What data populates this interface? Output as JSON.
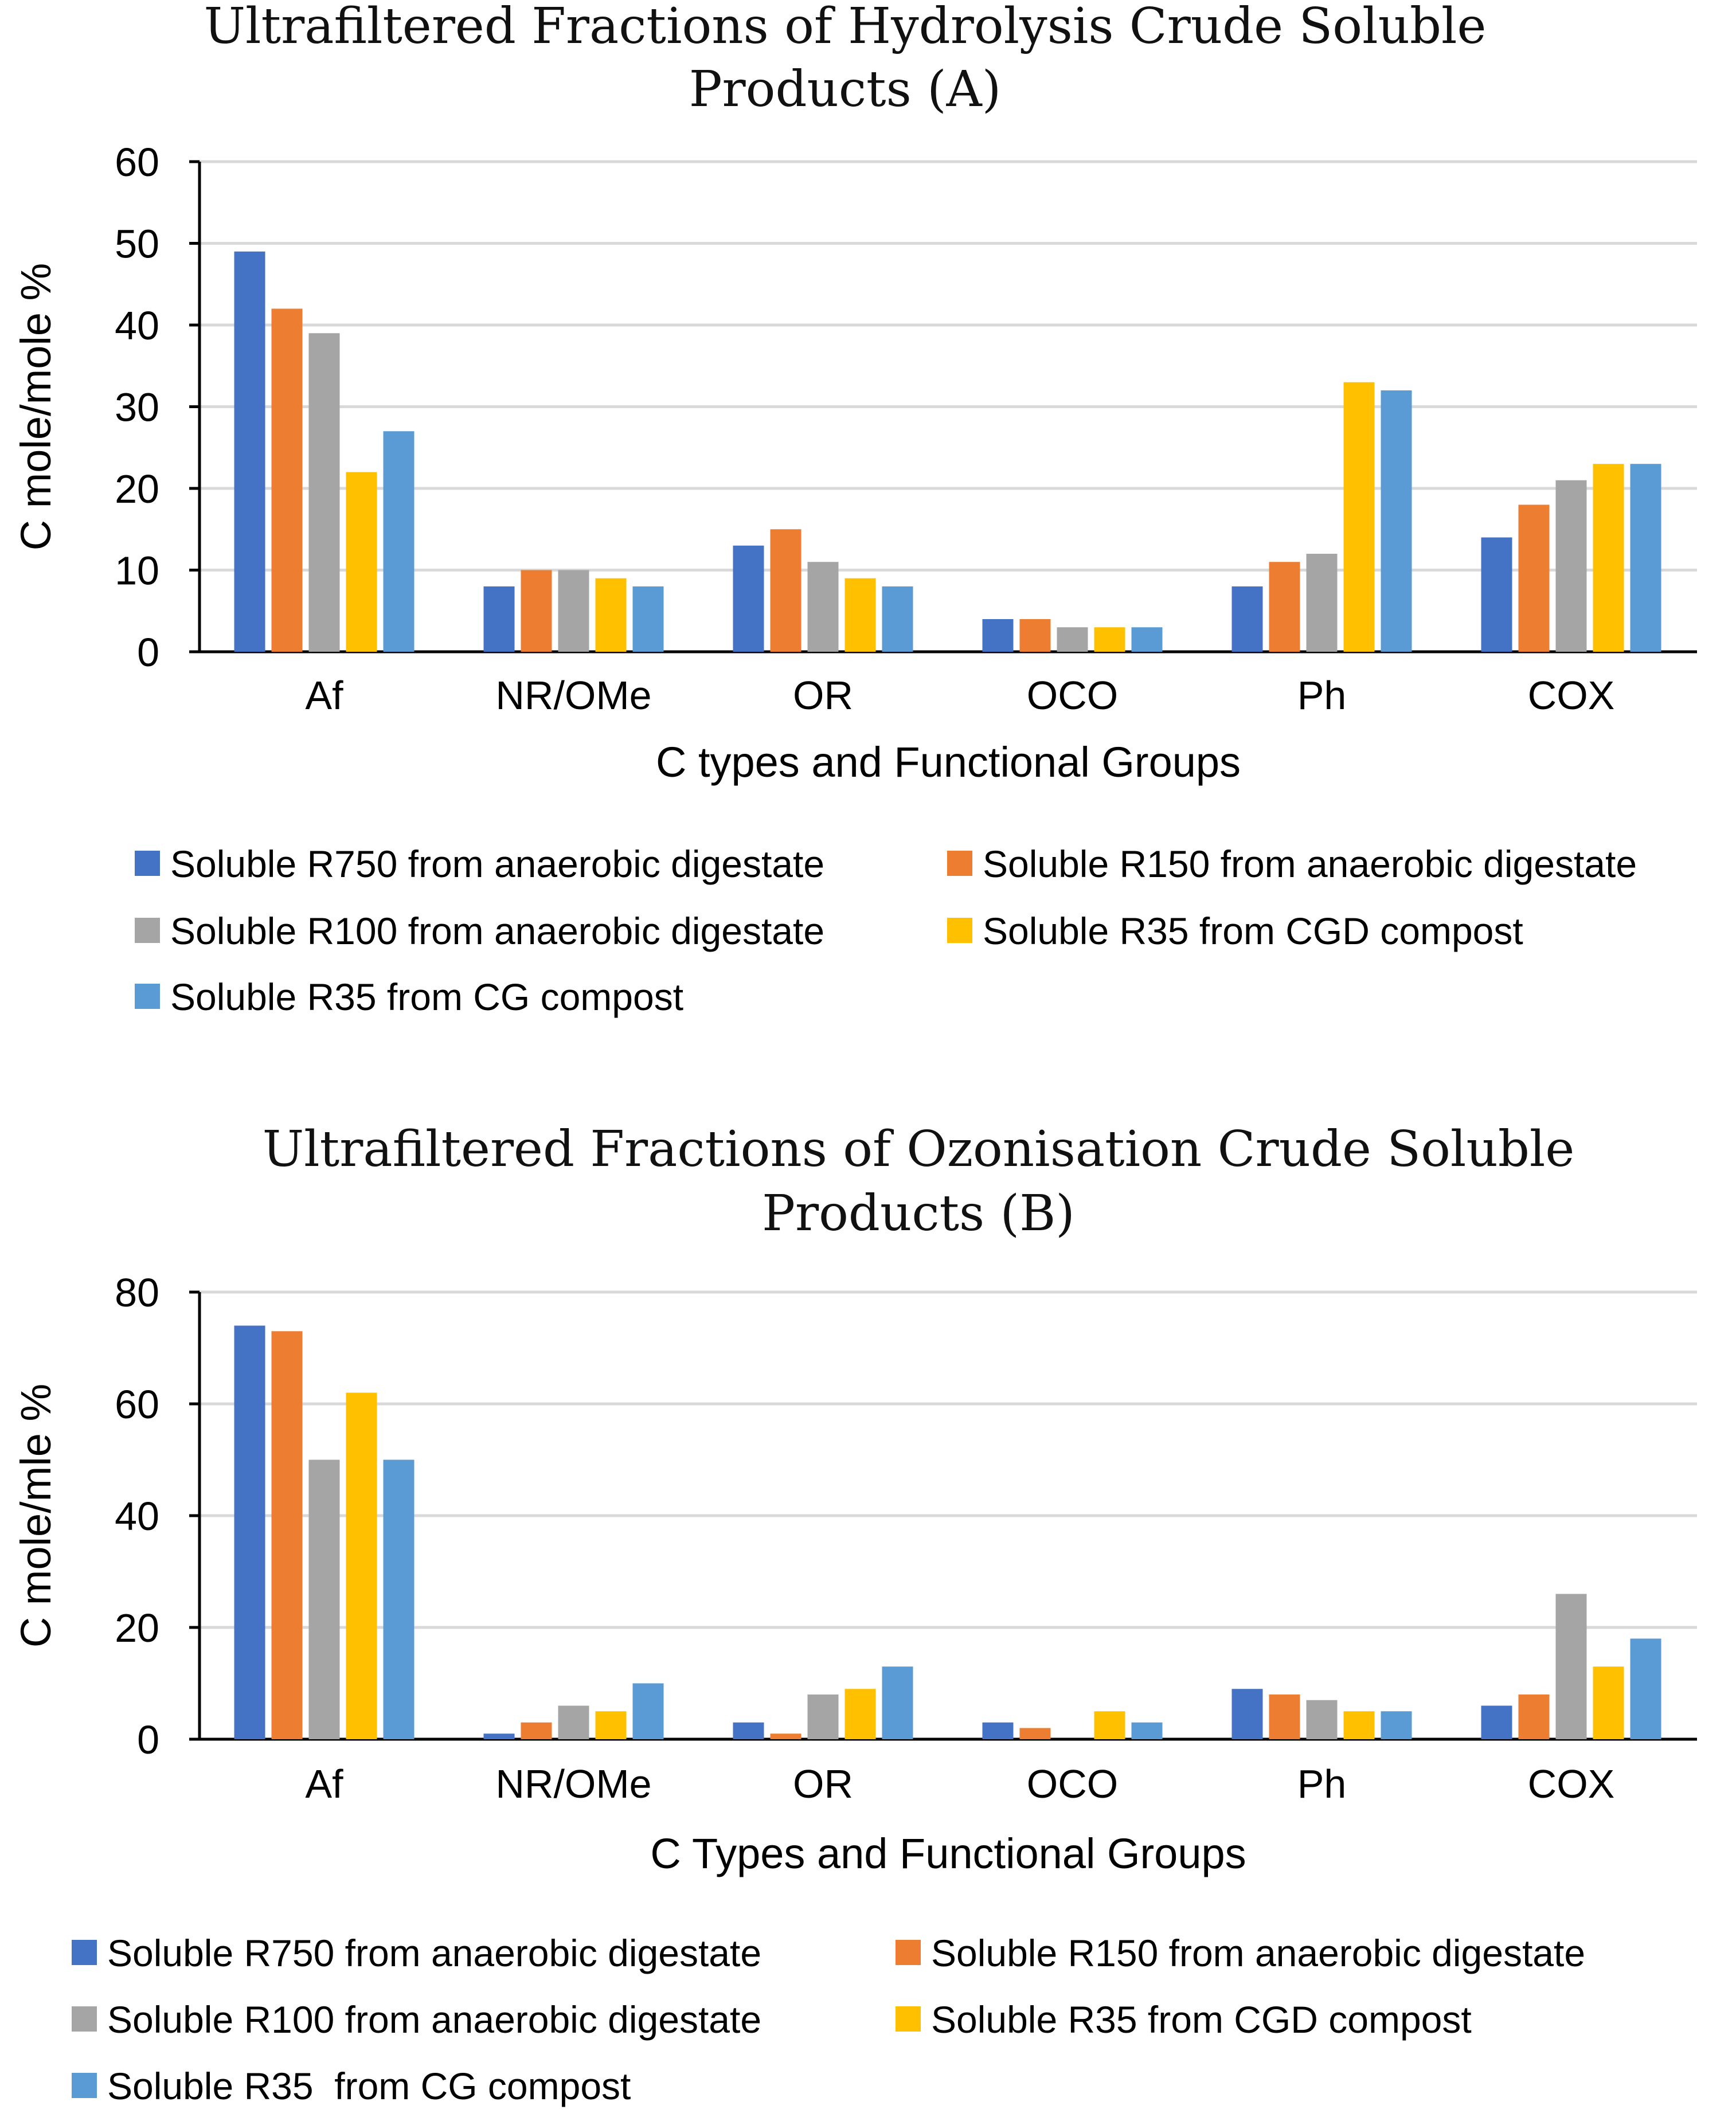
{
  "chart_data": [
    {
      "type": "bar",
      "title": "Ultrafiltered Fractions of Hydrolysis Crude Soluble",
      "title_line2": "Products (A)",
      "xlabel": "C types and Functional Groups",
      "ylabel": "C mole/mole %",
      "ylim": [
        0,
        60
      ],
      "yticks": [
        "0",
        "10",
        "20",
        "30",
        "40",
        "50",
        "60"
      ],
      "grid": true,
      "legend_position": "bottom",
      "categories": [
        "Af",
        "NR/OMe",
        "OR",
        "OCO",
        "Ph",
        "COX"
      ],
      "series": [
        {
          "name": "Soluble R750 from anaerobic digestate",
          "color": "#4472C4",
          "values": [
            49,
            8,
            13,
            4,
            8,
            14
          ]
        },
        {
          "name": "Soluble R150 from anaerobic digestate",
          "color": "#ED7D31",
          "values": [
            42,
            10,
            15,
            4,
            11,
            18
          ]
        },
        {
          "name": "Soluble R100 from anaerobic digestate",
          "color": "#A5A5A5",
          "values": [
            39,
            10,
            11,
            3,
            12,
            21
          ]
        },
        {
          "name": "Soluble R35 from CGD compost",
          "color": "#FFC000",
          "values": [
            22,
            9,
            9,
            3,
            33,
            23
          ]
        },
        {
          "name": "Soluble R35 from CG compost",
          "color": "#5B9BD5",
          "values": [
            27,
            8,
            8,
            3,
            32,
            23
          ]
        }
      ]
    },
    {
      "type": "bar",
      "title": "Ultrafiltered Fractions of Ozonisation Crude Soluble",
      "title_line2": "Products (B)",
      "xlabel": "C Types and Functional Groups",
      "ylabel": "C mole/mle %",
      "ylim": [
        0,
        80
      ],
      "yticks": [
        "0",
        "20",
        "40",
        "60",
        "80"
      ],
      "grid": true,
      "legend_position": "bottom",
      "categories": [
        "Af",
        "NR/OMe",
        "OR",
        "OCO",
        "Ph",
        "COX"
      ],
      "series": [
        {
          "name": "Soluble R750 from anaerobic digestate",
          "color": "#4472C4",
          "values": [
            74,
            1,
            3,
            3,
            9,
            6
          ]
        },
        {
          "name": "Soluble R150 from anaerobic digestate",
          "color": "#ED7D31",
          "values": [
            73,
            3,
            1,
            2,
            8,
            8
          ]
        },
        {
          "name": "Soluble R100 from anaerobic digestate",
          "color": "#A5A5A5",
          "values": [
            50,
            6,
            8,
            0,
            7,
            26
          ]
        },
        {
          "name": "Soluble R35 from CGD compost",
          "color": "#FFC000",
          "values": [
            62,
            5,
            9,
            5,
            5,
            13
          ]
        },
        {
          "name": "Soluble R35  from CG compost",
          "color": "#5B9BD5",
          "values": [
            50,
            10,
            13,
            3,
            5,
            18
          ]
        }
      ]
    }
  ]
}
